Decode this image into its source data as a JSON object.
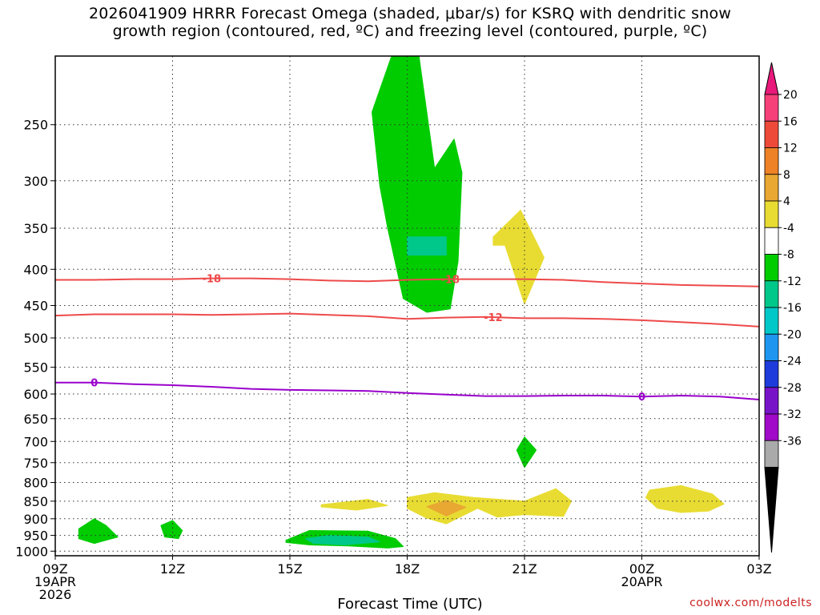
{
  "title": {
    "line1": "2026041909 HRRR Forecast Omega (shaded, μbar/s) for KSRQ with dendritic snow",
    "line2": "growth region (contoured, red, ºC) and freezing level (contoured, purple, ºC)"
  },
  "credit": "coolwx.com/modelts",
  "chart_data": {
    "type": "heatmap",
    "xlabel": "Forecast Time (UTC)",
    "x_ticks": [
      {
        "hour": 0,
        "lines": [
          "09Z",
          "19APR",
          "2026"
        ]
      },
      {
        "hour": 3,
        "lines": [
          "12Z"
        ]
      },
      {
        "hour": 6,
        "lines": [
          "15Z"
        ]
      },
      {
        "hour": 9,
        "lines": [
          "18Z"
        ]
      },
      {
        "hour": 12,
        "lines": [
          "21Z"
        ]
      },
      {
        "hour": 15,
        "lines": [
          "00Z",
          "20APR"
        ]
      },
      {
        "hour": 18,
        "lines": [
          "03Z"
        ]
      }
    ],
    "xlim": [
      0,
      18
    ],
    "ylabel": "",
    "y_scale": "log-pressure",
    "y_ticks": [
      250,
      300,
      350,
      400,
      450,
      500,
      550,
      600,
      650,
      700,
      750,
      800,
      850,
      900,
      950,
      1000
    ],
    "ylim": [
      200,
      1015
    ],
    "grid": "dotted",
    "ground_color": "#a0522d",
    "ground_hpa": 1015,
    "colorbar": {
      "labels": [
        20,
        16,
        12,
        8,
        4,
        -4,
        -8,
        -12,
        -16,
        -20,
        -24,
        -28,
        -32,
        -36
      ],
      "colors": [
        "#f5407a",
        "#ee4a3a",
        "#ee8226",
        "#e8a832",
        "#e8dc32",
        "#ffffff",
        "#00cc00",
        "#00c88a",
        "#00c8c8",
        "#1e96f0",
        "#1e3cdc",
        "#7814c8",
        "#a00ac8",
        "#aaaaaa"
      ],
      "top_arrow_color": "#e8197a",
      "bottom_arrow_color": "#000000"
    },
    "omega_regions": [
      {
        "value": -6,
        "color": "#00cc00",
        "points": [
          [
            8.6,
            200
          ],
          [
            9.3,
            200
          ],
          [
            9.7,
            288
          ],
          [
            10.2,
            262
          ],
          [
            10.4,
            292
          ],
          [
            10.3,
            390
          ],
          [
            10.1,
            455
          ],
          [
            9.5,
            460
          ],
          [
            8.9,
            440
          ],
          [
            8.5,
            350
          ],
          [
            8.3,
            305
          ],
          [
            8.1,
            240
          ]
        ]
      },
      {
        "value": -10,
        "color": "#00c88a",
        "points": [
          [
            9.0,
            360
          ],
          [
            10.0,
            360
          ],
          [
            10.0,
            382
          ],
          [
            9.0,
            382
          ]
        ]
      },
      {
        "value": 6,
        "color": "#e8dc32",
        "points": [
          [
            11.2,
            360
          ],
          [
            11.9,
            330
          ],
          [
            12.5,
            385
          ],
          [
            12.0,
            448
          ],
          [
            11.5,
            370
          ],
          [
            11.2,
            370
          ]
        ]
      },
      {
        "value": -6,
        "color": "#00cc00",
        "points": [
          [
            12.0,
            690
          ],
          [
            12.3,
            720
          ],
          [
            12.0,
            762
          ],
          [
            11.8,
            720
          ]
        ]
      },
      {
        "value": 6,
        "color": "#e8dc32",
        "points": [
          [
            6.8,
            860
          ],
          [
            8.0,
            845
          ],
          [
            8.5,
            862
          ],
          [
            7.7,
            875
          ],
          [
            6.8,
            866
          ]
        ]
      },
      {
        "value": 6,
        "color": "#e8dc32",
        "points": [
          [
            9.0,
            840
          ],
          [
            9.7,
            827
          ],
          [
            10.7,
            840
          ],
          [
            12.0,
            850
          ],
          [
            12.8,
            816
          ],
          [
            13.2,
            850
          ],
          [
            13.0,
            893
          ],
          [
            12.0,
            888
          ],
          [
            11.3,
            895
          ],
          [
            10.8,
            870
          ],
          [
            10.0,
            915
          ],
          [
            9.5,
            898
          ],
          [
            9.0,
            870
          ]
        ]
      },
      {
        "value": 10,
        "color": "#e8a832",
        "points": [
          [
            9.5,
            865
          ],
          [
            10.0,
            848
          ],
          [
            10.5,
            867
          ],
          [
            10.0,
            892
          ]
        ]
      },
      {
        "value": 6,
        "color": "#e8dc32",
        "points": [
          [
            15.2,
            820
          ],
          [
            16.0,
            808
          ],
          [
            16.8,
            830
          ],
          [
            17.1,
            858
          ],
          [
            16.7,
            878
          ],
          [
            16.0,
            882
          ],
          [
            15.4,
            870
          ],
          [
            15.1,
            840
          ]
        ]
      },
      {
        "value": -6,
        "color": "#00cc00",
        "points": [
          [
            0.6,
            930
          ],
          [
            1.0,
            900
          ],
          [
            1.3,
            920
          ],
          [
            1.6,
            955
          ],
          [
            1.0,
            975
          ],
          [
            0.6,
            960
          ]
        ]
      },
      {
        "value": -6,
        "color": "#00cc00",
        "points": [
          [
            2.7,
            920
          ],
          [
            3.0,
            905
          ],
          [
            3.25,
            935
          ],
          [
            3.15,
            960
          ],
          [
            2.8,
            955
          ]
        ]
      },
      {
        "value": -6,
        "color": "#00cc00",
        "points": [
          [
            5.9,
            965
          ],
          [
            6.5,
            935
          ],
          [
            8.0,
            937
          ],
          [
            8.7,
            960
          ],
          [
            8.9,
            985
          ],
          [
            8.5,
            990
          ],
          [
            7.5,
            983
          ],
          [
            6.5,
            980
          ],
          [
            5.9,
            972
          ]
        ]
      },
      {
        "value": -10,
        "color": "#00c88a",
        "points": [
          [
            6.4,
            960
          ],
          [
            7.0,
            950
          ],
          [
            8.0,
            955
          ],
          [
            8.3,
            970
          ],
          [
            7.4,
            980
          ],
          [
            6.6,
            975
          ]
        ]
      }
    ],
    "series": [
      {
        "name": "-18",
        "color": "#ee4a4a",
        "width": 2,
        "x": [
          0,
          1,
          2,
          3,
          4,
          5,
          6,
          7,
          8,
          9,
          10,
          11,
          12,
          13,
          14,
          15,
          16,
          17,
          18
        ],
        "y": [
          414,
          414,
          413,
          413,
          412,
          412,
          413,
          415,
          416,
          414,
          413,
          413,
          413,
          414,
          417,
          419,
          421,
          422,
          423
        ],
        "labels": [
          {
            "text": "-18",
            "x": 4.0
          },
          {
            "text": "-18",
            "x": 10.1
          }
        ]
      },
      {
        "name": "-12",
        "color": "#ee4a4a",
        "width": 2,
        "x": [
          0,
          1,
          2,
          3,
          4,
          5,
          6,
          7,
          8,
          9,
          10,
          11,
          12,
          13,
          14,
          15,
          16,
          17,
          18
        ],
        "y": [
          465,
          463,
          463,
          463,
          464,
          463,
          462,
          464,
          466,
          470,
          468,
          467,
          469,
          469,
          470,
          472,
          475,
          478,
          482
        ],
        "labels": [
          {
            "text": "-12",
            "x": 11.2
          }
        ]
      },
      {
        "name": "0",
        "color": "#9900cc",
        "width": 2,
        "x": [
          0,
          1,
          2,
          3,
          4,
          5,
          6,
          7,
          8,
          9,
          10,
          11,
          12,
          13,
          14,
          15,
          16,
          17,
          18
        ],
        "y": [
          578,
          578,
          581,
          583,
          586,
          590,
          592,
          593,
          594,
          598,
          601,
          604,
          604,
          603,
          603,
          605,
          603,
          605,
          611
        ],
        "labels": [
          {
            "text": "0",
            "x": 1.0
          },
          {
            "text": "0",
            "x": 15.0
          }
        ]
      }
    ]
  }
}
